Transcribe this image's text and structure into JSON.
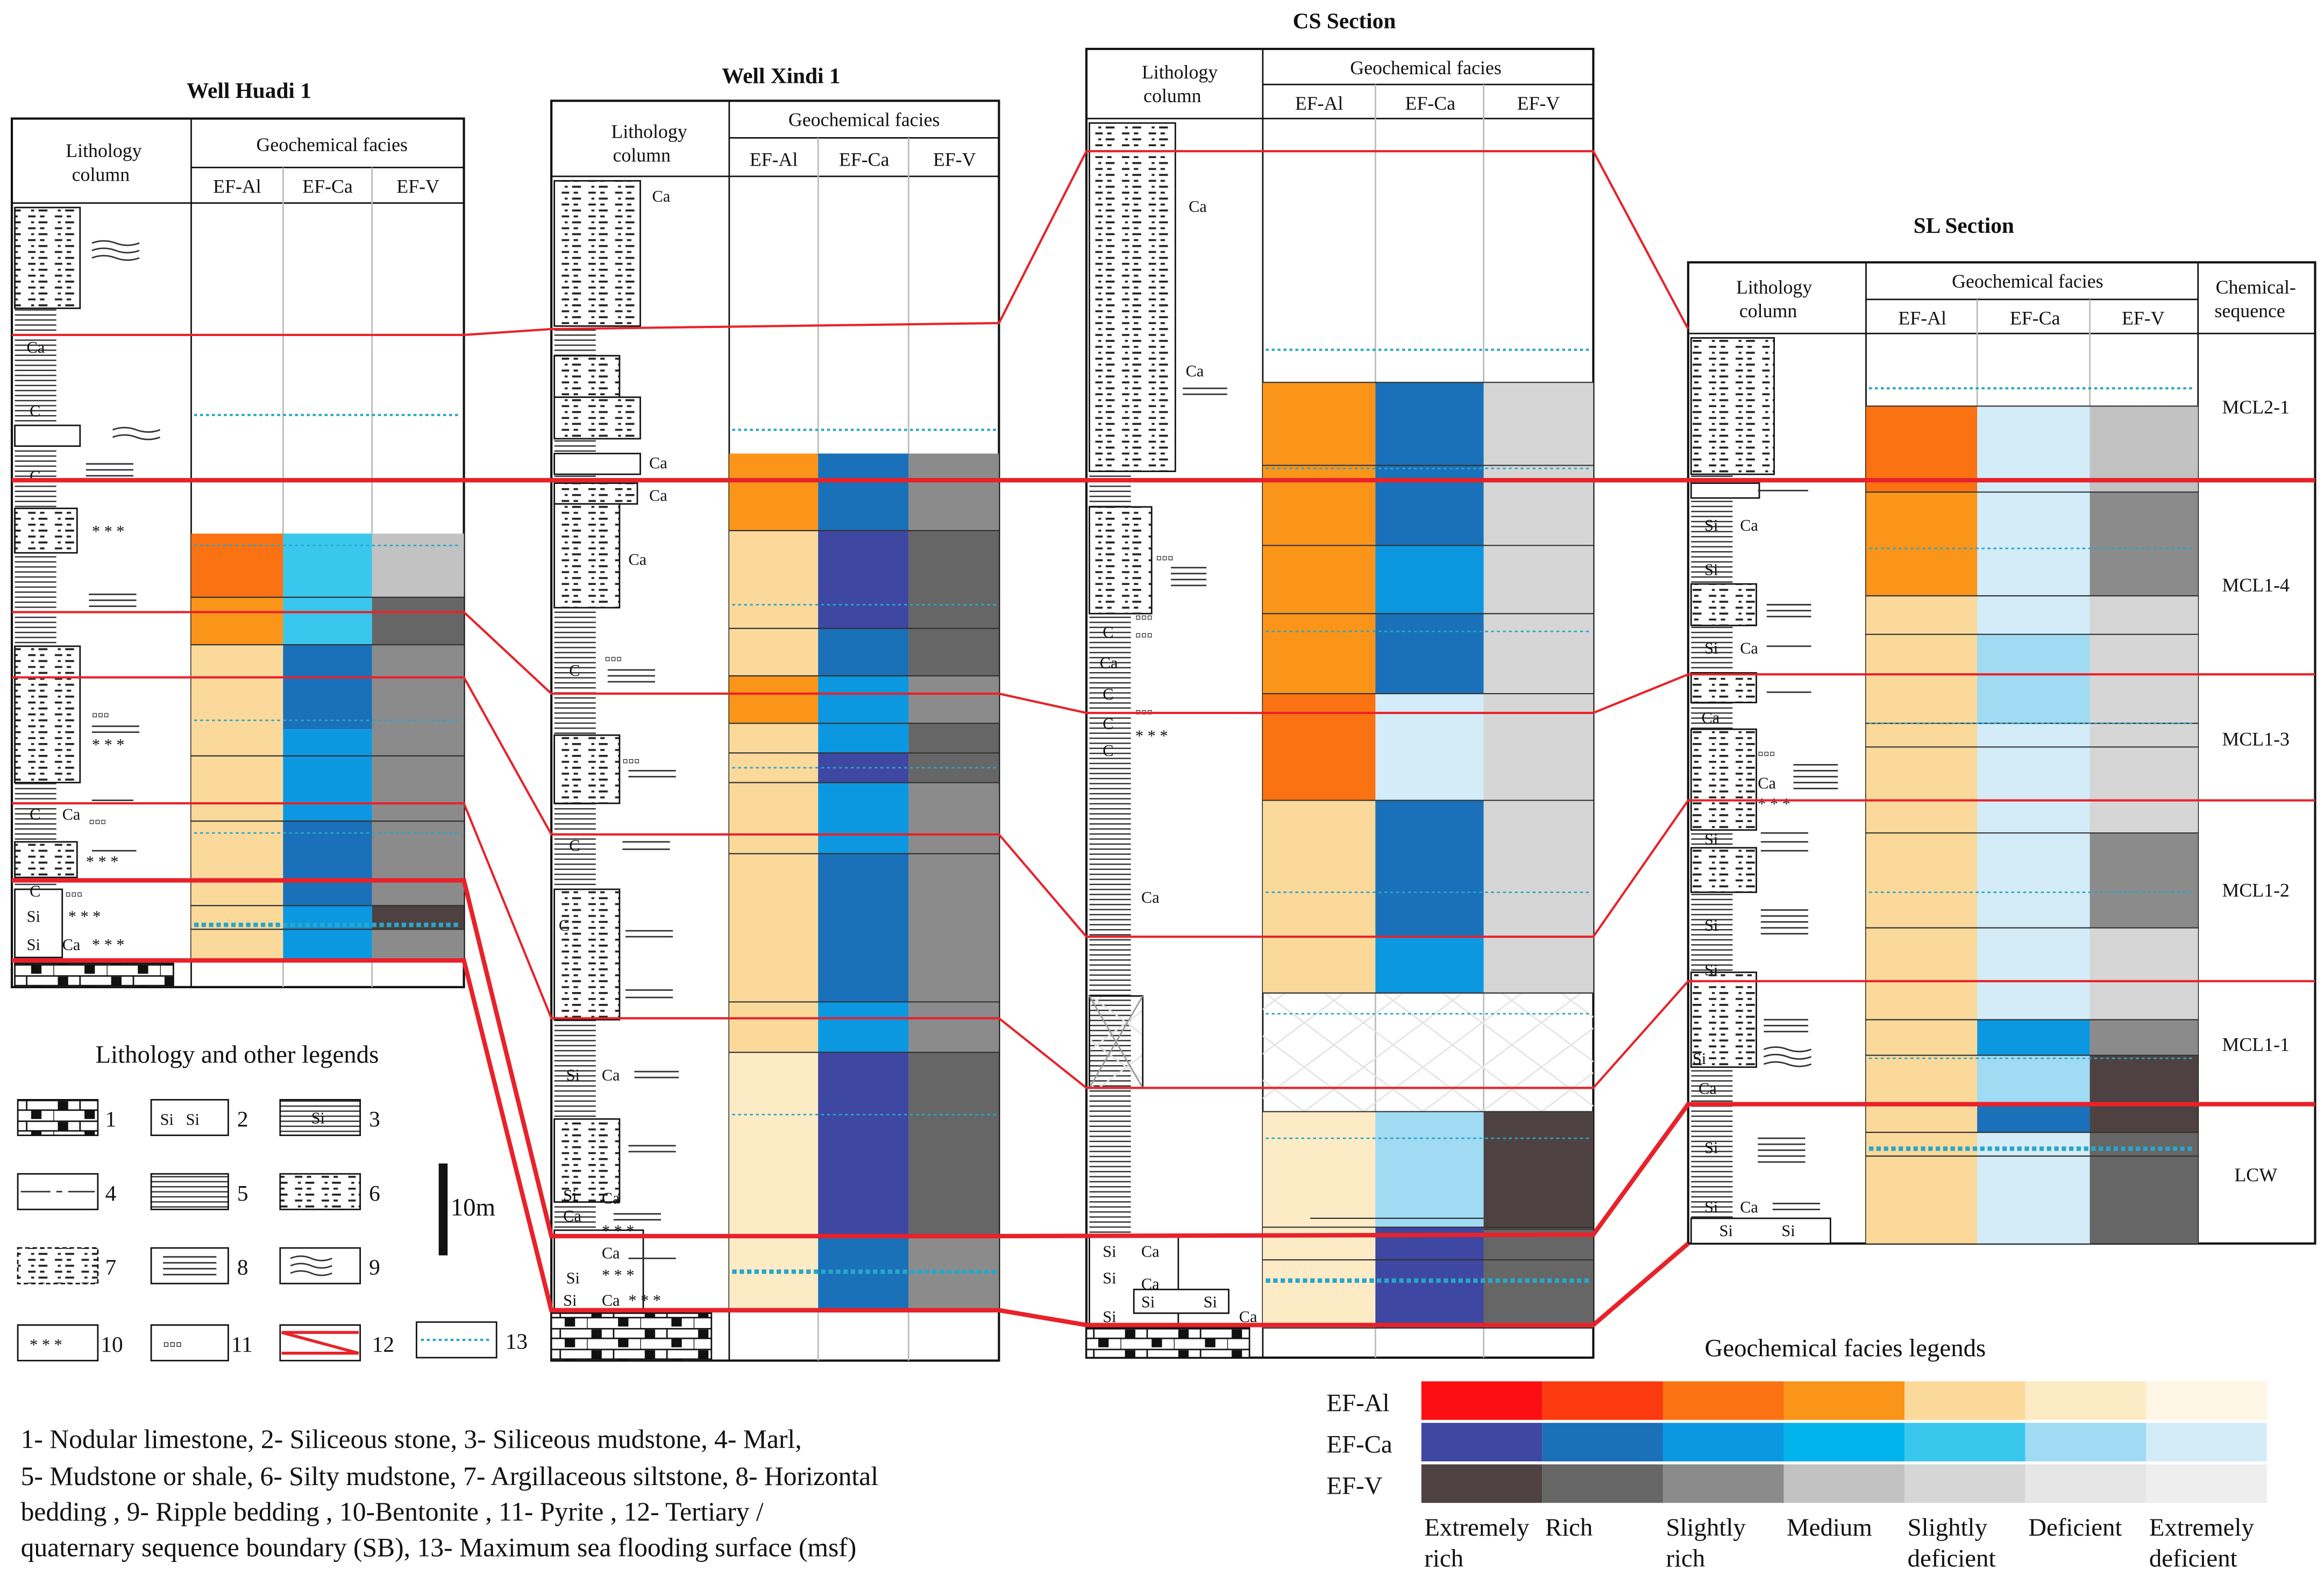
{
  "colors": {
    "al": [
      "#fc0f12",
      "#fb3a10",
      "#fa7212",
      "#fa9519",
      "#fbd99b",
      "#fdebc6",
      "#fdf6e4"
    ],
    "ca": [
      "#3e47a1",
      "#1a70b9",
      "#0b98e1",
      "#00b3eb",
      "#3ac7ee",
      "#a0dbf3",
      "#d3ecf8"
    ],
    "v": [
      "#4d4241",
      "#666666",
      "#8b8b8c",
      "#c2c2c2",
      "#d6d6d6",
      "#e6e6e6",
      "#eeeeee"
    ],
    "boundary": "#e8222a",
    "msf": "#29a6c9"
  },
  "header": {
    "litho": "Lithology column",
    "facies": "Geochemical facies",
    "al": "EF-Al",
    "ca": "EF-Ca",
    "v": "EF-V",
    "chem": "Chemical- sequence"
  },
  "wells": {
    "huadi": {
      "title": "Well Huadi 1"
    },
    "xindi": {
      "title": "Well Xindi 1"
    },
    "cs": {
      "title": "CS Section"
    },
    "sl": {
      "title": "SL Section"
    }
  },
  "litho_labels": {
    "ca": "Ca",
    "c": "C",
    "si": "Si",
    "sica": "Si Ca",
    "bentonite": "* * *",
    "pyrite": "▫▫▫"
  },
  "sequences": [
    "MCL2-1",
    "MCL1-4",
    "MCL1-3",
    "MCL1-2",
    "MCL1-1",
    "LCW"
  ],
  "legend": {
    "title": "Lithology and other legends",
    "numbers": [
      "1",
      "2",
      "3",
      "4",
      "5",
      "6",
      "7",
      "8",
      "9",
      "10",
      "11",
      "12",
      "13"
    ],
    "scale": "10m",
    "notes": [
      "1- Nodular limestone, 2- Siliceous stone, 3- Siliceous mudstone, 4- Marl,",
      " 5- Mudstone or shale, 6- Silty mudstone, 7- Argillaceous siltstone, 8- Horizontal",
      "bedding , 9- Ripple bedding , 10-Bentonite , 11- Pyrite , 12- Tertiary /",
      "quaternary sequence boundary (SB), 13- Maximum sea flooding surface (msf)"
    ]
  },
  "facies_legend": {
    "title": "Geochemical facies legends",
    "rows": [
      "EF-Al",
      "EF-Ca",
      "EF-V"
    ],
    "levels": [
      [
        "Extremely",
        "rich"
      ],
      [
        "Rich",
        ""
      ],
      [
        "Slightly",
        "rich"
      ],
      [
        "Medium",
        ""
      ],
      [
        "Slightly",
        "deficient"
      ],
      [
        "Deficient",
        ""
      ],
      [
        "Extremely",
        "deficient"
      ]
    ]
  }
}
